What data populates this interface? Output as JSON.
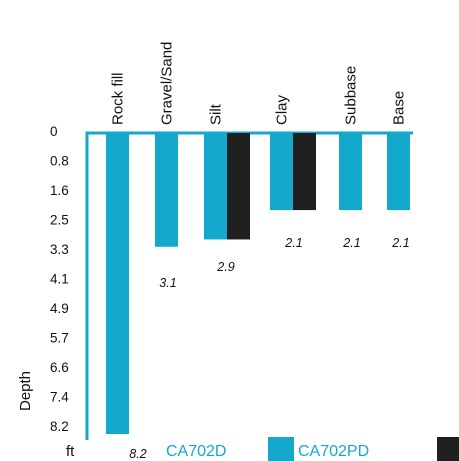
{
  "chart_data": {
    "type": "bar",
    "orientation": "vertical-downward",
    "categories": [
      "Rock fill",
      "Gravel/Sand",
      "Silt",
      "Clay",
      "Subbase",
      "Base"
    ],
    "series": [
      {
        "name": "CA702D",
        "color": "#14a9cc",
        "values": [
          8.2,
          3.1,
          2.9,
          2.1,
          2.1,
          2.1
        ]
      },
      {
        "name": "CA702PD",
        "color": "#1f1f1f",
        "values": [
          null,
          null,
          2.9,
          2.1,
          null,
          null
        ]
      }
    ],
    "value_labels": [
      "8.2",
      "3.1",
      "2.9",
      "2.1",
      "2.1",
      "2.1"
    ],
    "y_ticks": [
      "0",
      "0.8",
      "1.6",
      "2.5",
      "3.3",
      "4.1",
      "4.9",
      "5.7",
      "6.6",
      "7.4",
      "8.2"
    ],
    "ylabel": "Depth",
    "yunit": "ft",
    "ylim": [
      0,
      8.2
    ],
    "axis_color": "#14a9cc",
    "grid": false,
    "legend_position": "bottom"
  }
}
